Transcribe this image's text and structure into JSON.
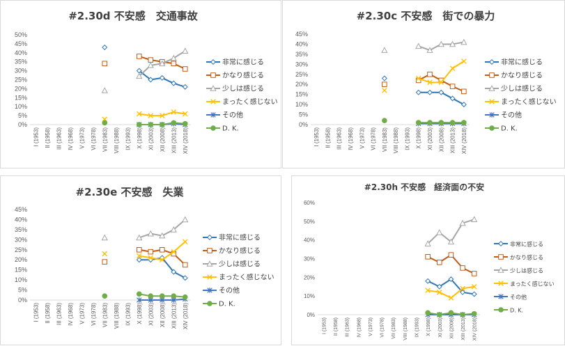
{
  "x_labels": [
    "I (1953)",
    "II (1958)",
    "III (1963)",
    "IV (1968)",
    "V (1973)",
    "VI (1978)",
    "VII (1983)",
    "VIII (1988)",
    "IX (1993)",
    "X (1998)",
    "XI (2003)",
    "XII (2008)",
    "XIII (2013)",
    "XIV (2018)"
  ],
  "series_style": [
    {
      "name": "非常に感じる",
      "color": "#2e75b6",
      "marker": "diamond"
    },
    {
      "name": "かなり感じる",
      "color": "#c55a11",
      "marker": "square"
    },
    {
      "name": "少しは感じる",
      "color": "#a5a5a5",
      "marker": "triangle"
    },
    {
      "name": "まったく感じない",
      "color": "#ffc000",
      "marker": "x"
    },
    {
      "name": "その他",
      "color": "#4472c4",
      "marker": "star"
    },
    {
      "name": "D. K.",
      "color": "#70ad47",
      "marker": "circle"
    }
  ],
  "chart_data": [
    {
      "type": "line",
      "title": "#2.30d 不安感　交通事故",
      "categories": [
        "I (1953)",
        "II (1958)",
        "III (1963)",
        "IV (1968)",
        "V (1973)",
        "VI (1978)",
        "VII (1983)",
        "VIII (1988)",
        "IX (1993)",
        "X (1998)",
        "XI (2003)",
        "XII (2008)",
        "XIII (2013)",
        "XIV (2018)"
      ],
      "y_ticks": [
        "0%",
        "5%",
        "10%",
        "15%",
        "20%",
        "25%",
        "30%",
        "35%",
        "40%",
        "45%",
        "50%"
      ],
      "ylim": [
        0,
        50
      ],
      "series": [
        {
          "name": "非常に感じる",
          "values": [
            null,
            null,
            null,
            null,
            null,
            null,
            43,
            null,
            null,
            30,
            25,
            26,
            23,
            21
          ]
        },
        {
          "name": "かなり感じる",
          "values": [
            null,
            null,
            null,
            null,
            null,
            null,
            34,
            null,
            null,
            38,
            36,
            35,
            34,
            31
          ]
        },
        {
          "name": "少しは感じる",
          "values": [
            null,
            null,
            null,
            null,
            null,
            null,
            19,
            null,
            null,
            27,
            33,
            34,
            37,
            41
          ]
        },
        {
          "name": "まったく感じない",
          "values": [
            null,
            null,
            null,
            null,
            null,
            null,
            3,
            null,
            null,
            6,
            5,
            5,
            7,
            6
          ]
        },
        {
          "name": "その他",
          "values": [
            null,
            null,
            null,
            null,
            null,
            null,
            null,
            null,
            null,
            0,
            0,
            0,
            0.5,
            0
          ]
        },
        {
          "name": "D. K.",
          "values": [
            null,
            null,
            null,
            null,
            null,
            null,
            1,
            null,
            null,
            0,
            0,
            0,
            1,
            0.5
          ]
        }
      ]
    },
    {
      "type": "line",
      "title": "#2.30c 不安感　街での暴力",
      "categories": [
        "I (1953)",
        "II (1958)",
        "III (1963)",
        "IV (1968)",
        "V (1973)",
        "VI (1978)",
        "VII (1983)",
        "VIII (1988)",
        "IX (1993)",
        "X (1998)",
        "XI (2003)",
        "XII (2008)",
        "XIII (2013)",
        "XIV (2018)"
      ],
      "y_ticks": [
        "0%",
        "5%",
        "10%",
        "15%",
        "20%",
        "25%",
        "30%",
        "35%",
        "40%",
        "45%"
      ],
      "ylim": [
        0,
        45
      ],
      "series": [
        {
          "name": "非常に感じる",
          "values": [
            null,
            null,
            null,
            null,
            null,
            null,
            23,
            null,
            null,
            16,
            16,
            16,
            13,
            10
          ]
        },
        {
          "name": "かなり感じる",
          "values": [
            null,
            null,
            null,
            null,
            null,
            null,
            20,
            null,
            null,
            22,
            25,
            22,
            19,
            16.5
          ]
        },
        {
          "name": "少しは感じる",
          "values": [
            null,
            null,
            null,
            null,
            null,
            null,
            37,
            null,
            null,
            39,
            37,
            40,
            40,
            41
          ]
        },
        {
          "name": "まったく感じない",
          "values": [
            null,
            null,
            null,
            null,
            null,
            null,
            17,
            null,
            null,
            23,
            21,
            21,
            28,
            31.5
          ]
        },
        {
          "name": "その他",
          "values": [
            null,
            null,
            null,
            null,
            null,
            null,
            null,
            null,
            null,
            0.5,
            0.5,
            0.5,
            0.5,
            0.5
          ]
        },
        {
          "name": "D. K.",
          "values": [
            null,
            null,
            null,
            null,
            null,
            null,
            2,
            null,
            null,
            1,
            1,
            1,
            1,
            1
          ]
        }
      ]
    },
    {
      "type": "line",
      "title": "#2.30e 不安感　失業",
      "categories": [
        "I (1953)",
        "II (1958)",
        "III (1963)",
        "IV (1968)",
        "V (1973)",
        "VI (1978)",
        "VII (1983)",
        "VIII (1988)",
        "IX (1993)",
        "X (1998)",
        "XI (2003)",
        "XII (2008)",
        "XIII (2013)",
        "XIV (2018)"
      ],
      "y_ticks": [
        "0%",
        "5%",
        "10%",
        "15%",
        "20%",
        "25%",
        "30%",
        "35%",
        "40%",
        "45%"
      ],
      "ylim": [
        0,
        45
      ],
      "series": [
        {
          "name": "非常に感じる",
          "values": [
            null,
            null,
            null,
            null,
            null,
            null,
            null,
            null,
            null,
            20,
            20,
            21,
            14,
            11
          ]
        },
        {
          "name": "かなり感じる",
          "values": [
            null,
            null,
            null,
            null,
            null,
            null,
            19,
            null,
            null,
            25,
            24,
            25,
            23,
            17.5
          ]
        },
        {
          "name": "少しは感じる",
          "values": [
            null,
            null,
            null,
            null,
            null,
            null,
            31,
            null,
            null,
            31,
            33,
            32,
            35,
            40
          ]
        },
        {
          "name": "まったく感じない",
          "values": [
            null,
            null,
            null,
            null,
            null,
            null,
            23,
            null,
            null,
            22,
            21,
            20,
            24,
            29
          ]
        },
        {
          "name": "その他",
          "values": [
            null,
            null,
            null,
            null,
            null,
            null,
            null,
            null,
            null,
            0,
            0,
            0,
            0,
            0.5
          ]
        },
        {
          "name": "D. K.",
          "values": [
            null,
            null,
            null,
            null,
            null,
            null,
            2,
            null,
            null,
            3,
            2,
            2,
            2,
            1.5
          ]
        }
      ]
    },
    {
      "type": "line",
      "title": "#2.30h 不安感　経済面の不安",
      "categories": [
        "I (1953)",
        "II (1958)",
        "III (1963)",
        "IV (1968)",
        "V (1973)",
        "VI (1978)",
        "VII (1983)",
        "VIII (1988)",
        "IX (1993)",
        "X (1998)",
        "XI (2003)",
        "XII (2008)",
        "XIII (2013)",
        "XIV (2018)"
      ],
      "y_ticks": [
        "0%",
        "10%",
        "20%",
        "30%",
        "40%",
        "50%",
        "60%"
      ],
      "ylim": [
        0,
        60
      ],
      "series": [
        {
          "name": "非常に感じる",
          "values": [
            null,
            null,
            null,
            null,
            null,
            null,
            null,
            null,
            null,
            18,
            15,
            19,
            12,
            11
          ]
        },
        {
          "name": "かなり感じる",
          "values": [
            null,
            null,
            null,
            null,
            null,
            null,
            null,
            null,
            null,
            31,
            28,
            32,
            25,
            22
          ]
        },
        {
          "name": "少しは感じる",
          "values": [
            null,
            null,
            null,
            null,
            null,
            null,
            null,
            null,
            null,
            38,
            44,
            39,
            49,
            51
          ]
        },
        {
          "name": "まったく感じない",
          "values": [
            null,
            null,
            null,
            null,
            null,
            null,
            null,
            null,
            null,
            13,
            12,
            9,
            14,
            15
          ]
        },
        {
          "name": "その他",
          "values": [
            null,
            null,
            null,
            null,
            null,
            null,
            null,
            null,
            null,
            0,
            0,
            0,
            0,
            0
          ]
        },
        {
          "name": "D. K.",
          "values": [
            null,
            null,
            null,
            null,
            null,
            null,
            null,
            null,
            null,
            1,
            0,
            1,
            0,
            0.5
          ]
        }
      ]
    }
  ]
}
